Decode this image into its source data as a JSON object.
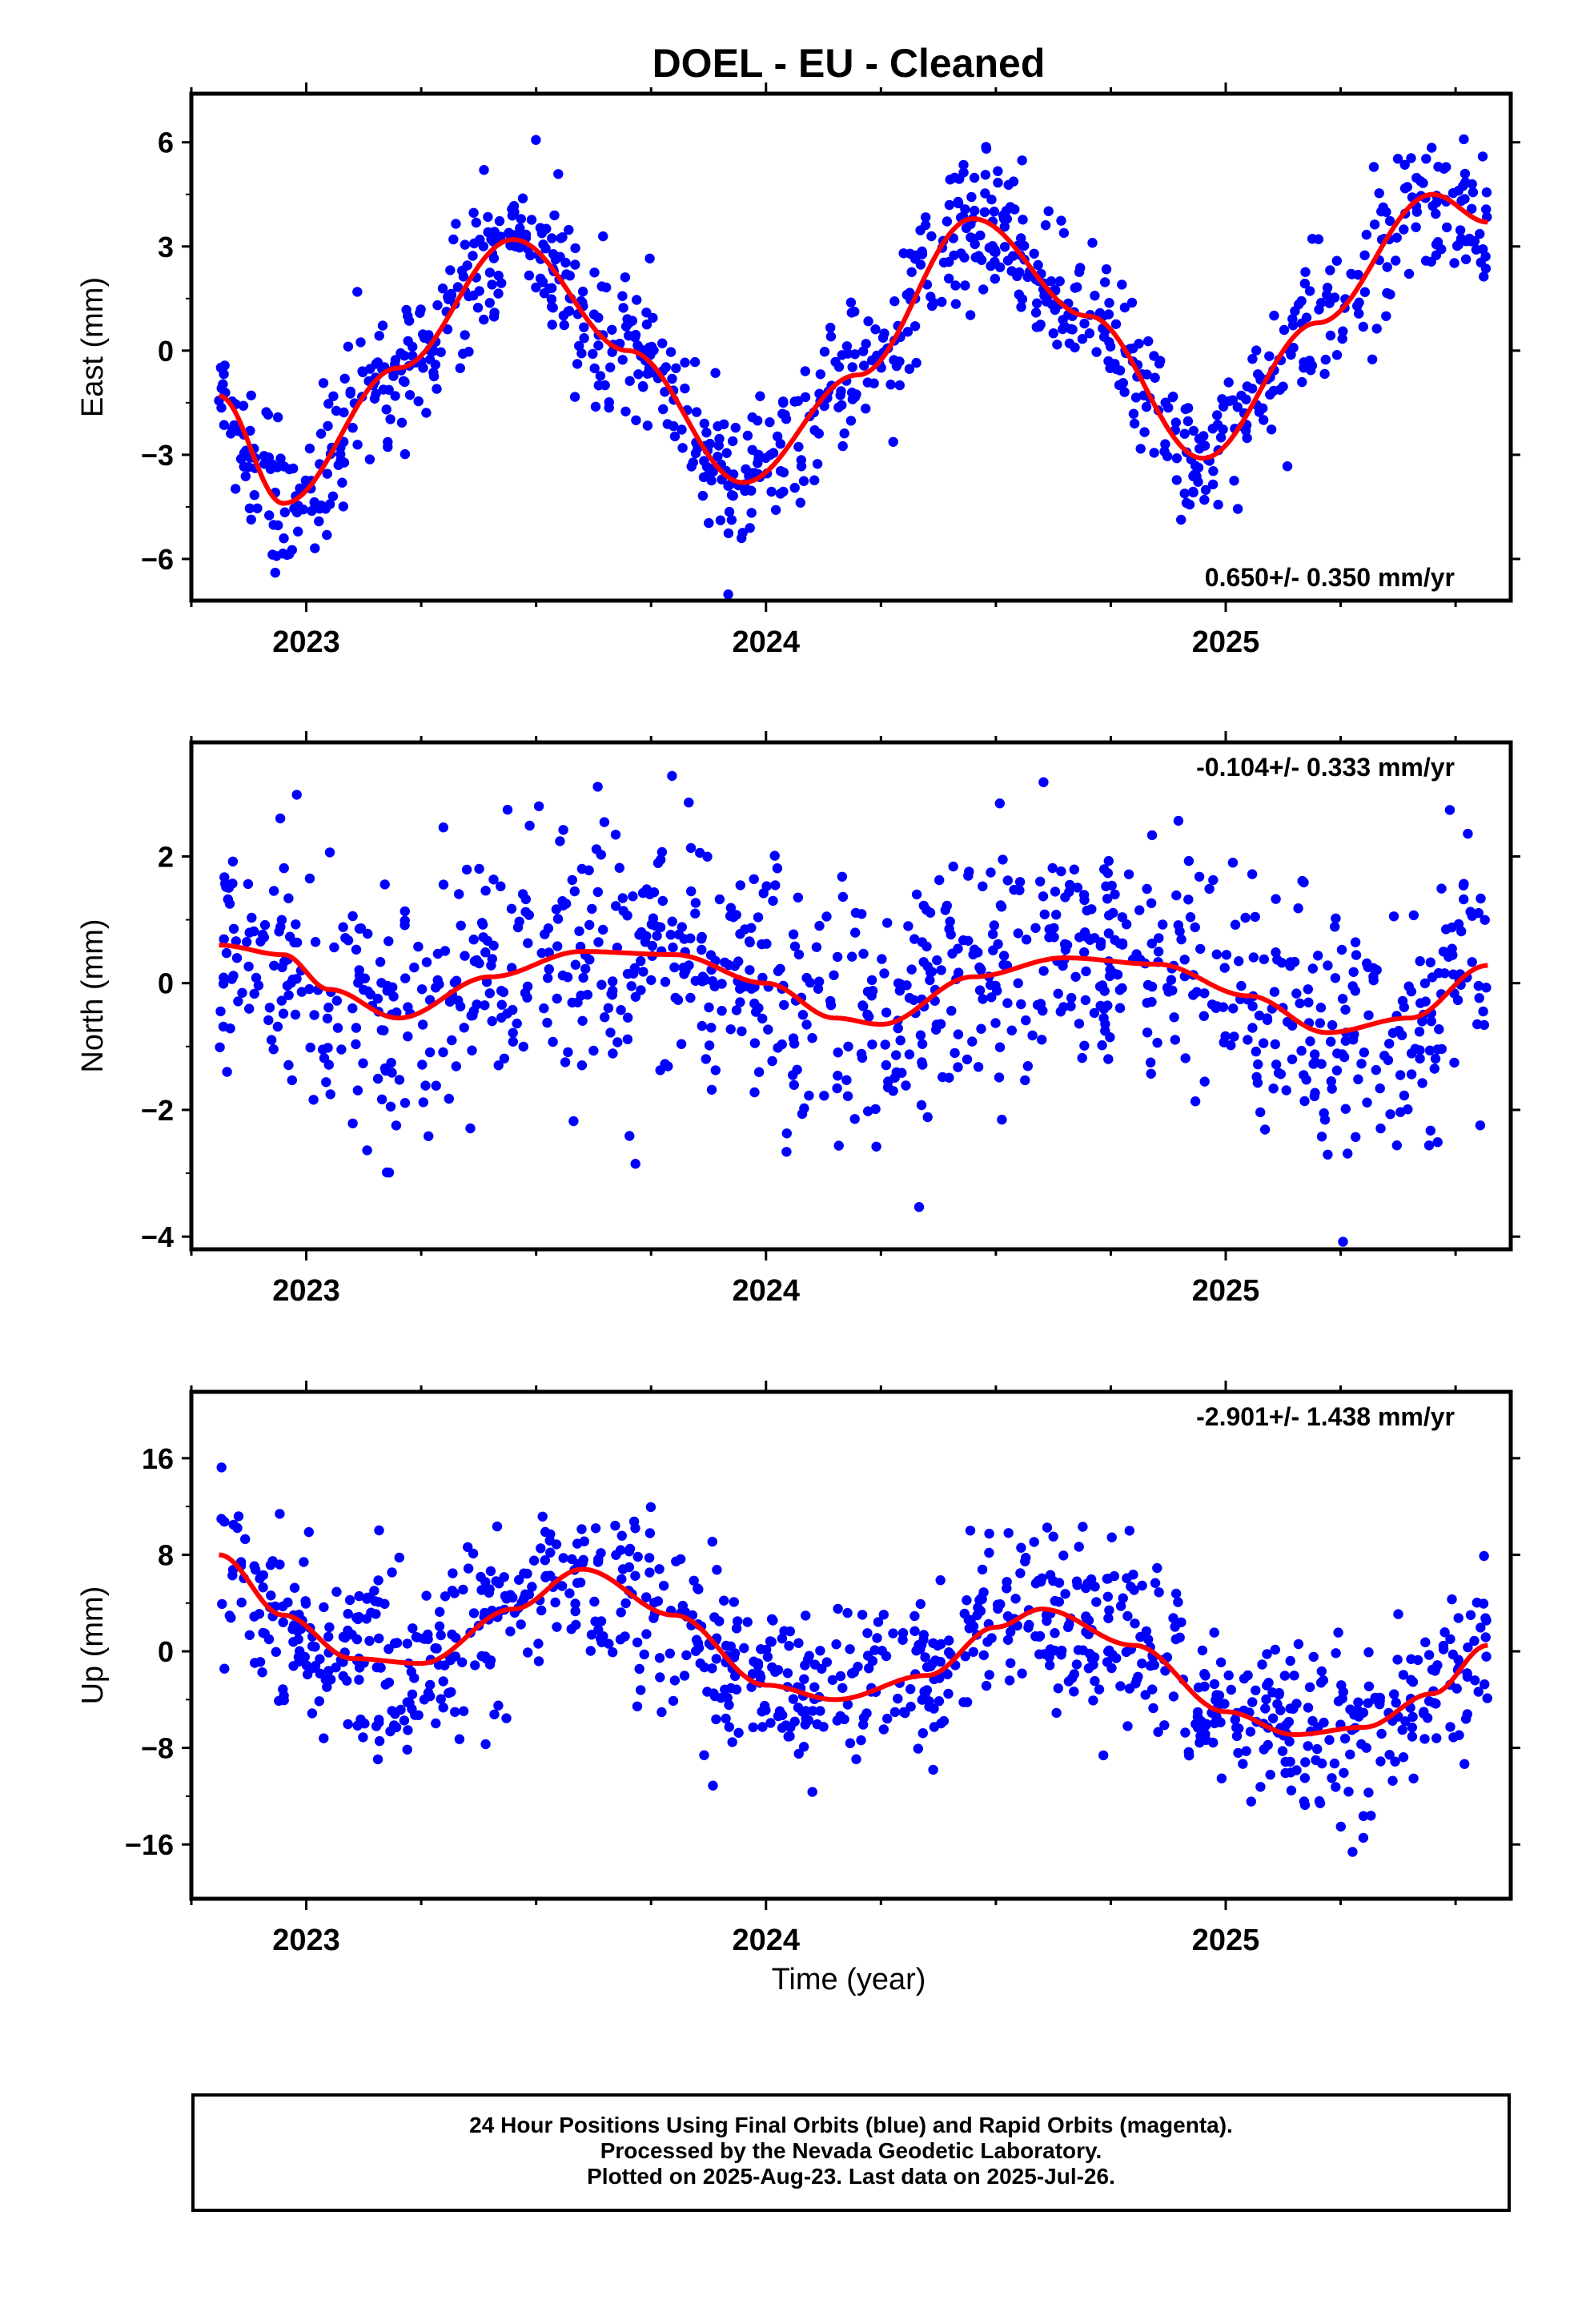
{
  "title": "DOEL  - EU - Cleaned",
  "xlabel": "Time (year)",
  "footer": {
    "line1": "24 Hour Positions Using Final Orbits (blue) and Rapid Orbits (magenta).",
    "line2": "Processed by the Nevada Geodetic Laboratory.",
    "line3": "Plotted on 2025-Aug-23. Last data on 2025-Jul-26."
  },
  "colors": {
    "points": "#0000ff",
    "fit": "#ff0000",
    "frame": "#000000"
  },
  "chart_data": [
    {
      "type": "scatter",
      "ylabel": "East (mm)",
      "annotation": "0.650+/- 0.350 mm/yr",
      "annotation_position": "bottom-right",
      "xlim": [
        2022.75,
        2025.62
      ],
      "ylim": [
        -7.2,
        7.4
      ],
      "yticks": [
        -6,
        -3,
        0,
        3,
        6
      ],
      "ytick_labels": [
        "−6",
        "−3",
        "0",
        "3",
        "6"
      ],
      "xticks": [
        2023,
        2024,
        2025
      ],
      "xtick_labels": [
        "2023",
        "2024",
        "2025"
      ],
      "data_start": 2022.81,
      "data_end": 2025.57,
      "fit_curve": {
        "x": [
          2022.81,
          2022.95,
          2023.2,
          2023.45,
          2023.7,
          2023.95,
          2024.2,
          2024.45,
          2024.7,
          2024.95,
          2025.2,
          2025.45,
          2025.57
        ],
        "y": [
          -1.3,
          -4.4,
          -0.5,
          3.2,
          0.0,
          -3.8,
          -0.7,
          3.8,
          1.0,
          -3.1,
          0.8,
          4.5,
          3.7
        ]
      },
      "scatter_noise_sd": 1.0
    },
    {
      "type": "scatter",
      "ylabel": "North (mm)",
      "annotation": "-0.104+/- 0.333 mm/yr",
      "annotation_position": "top-right",
      "xlim": [
        2022.75,
        2025.62
      ],
      "ylim": [
        -4.2,
        3.8
      ],
      "yticks": [
        -4,
        -2,
        0,
        2
      ],
      "ytick_labels": [
        "−4",
        "−2",
        "0",
        "2"
      ],
      "xticks": [
        2023,
        2024,
        2025
      ],
      "xtick_labels": [
        "2023",
        "2024",
        "2025"
      ],
      "data_start": 2022.81,
      "data_end": 2025.57,
      "fit_curve": {
        "x": [
          2022.81,
          2022.95,
          2023.05,
          2023.2,
          2023.4,
          2023.6,
          2023.8,
          2024.0,
          2024.15,
          2024.25,
          2024.45,
          2024.65,
          2024.85,
          2025.05,
          2025.22,
          2025.4,
          2025.57
        ],
        "y": [
          0.6,
          0.45,
          -0.1,
          -0.55,
          0.1,
          0.5,
          0.45,
          0.0,
          -0.55,
          -0.65,
          0.1,
          0.4,
          0.3,
          -0.2,
          -0.78,
          -0.55,
          0.28
        ]
      },
      "scatter_noise_sd": 1.05
    },
    {
      "type": "scatter",
      "ylabel": "Up (mm)",
      "annotation": "-2.901+/- 1.438 mm/yr",
      "annotation_position": "top-right",
      "xlim": [
        2022.75,
        2025.62
      ],
      "ylim": [
        -20.5,
        21.5
      ],
      "yticks": [
        -16,
        -8,
        0,
        8,
        16
      ],
      "ytick_labels": [
        "−16",
        "−8",
        "0",
        "8",
        "16"
      ],
      "xticks": [
        2023,
        2024,
        2025
      ],
      "xtick_labels": [
        "2023",
        "2024",
        "2025"
      ],
      "data_start": 2022.81,
      "data_end": 2025.57,
      "fit_curve": {
        "x": [
          2022.81,
          2022.95,
          2023.1,
          2023.25,
          2023.45,
          2023.6,
          2023.8,
          2024.0,
          2024.15,
          2024.35,
          2024.5,
          2024.6,
          2024.8,
          2025.0,
          2025.15,
          2025.3,
          2025.45,
          2025.57
        ],
        "y": [
          8.0,
          3.0,
          -0.6,
          -1.0,
          3.5,
          6.8,
          3.0,
          -2.8,
          -4.0,
          -2.0,
          2.0,
          3.5,
          0.5,
          -5.0,
          -6.9,
          -6.3,
          -3.5,
          0.5
        ]
      },
      "scatter_noise_sd": 3.6
    }
  ]
}
